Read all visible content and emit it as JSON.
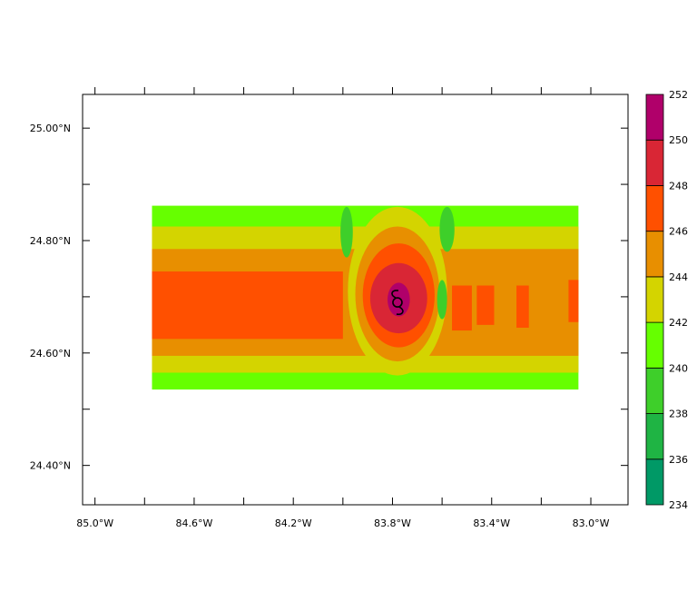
{
  "chart_data": {
    "type": "heatmap",
    "subtype": "filled-contour-map",
    "title": "",
    "xlabel": "",
    "ylabel": "",
    "xlim": [
      -85.05,
      -82.85
    ],
    "ylim": [
      24.33,
      25.06
    ],
    "x_ticks": [
      {
        "value": -85.0,
        "label": "85.0°W"
      },
      {
        "value": -84.6,
        "label": "84.6°W"
      },
      {
        "value": -84.2,
        "label": "84.2°W"
      },
      {
        "value": -83.8,
        "label": "83.8°W"
      },
      {
        "value": -83.4,
        "label": "83.4°W"
      },
      {
        "value": -83.0,
        "label": "83.0°W"
      }
    ],
    "x_minor_ticks": [
      -84.8,
      -84.4,
      -84.0,
      -83.6,
      -83.2
    ],
    "y_ticks": [
      {
        "value": 25.0,
        "label": "25.00°N"
      },
      {
        "value": 24.8,
        "label": "24.80°N"
      },
      {
        "value": 24.6,
        "label": "24.60°N"
      },
      {
        "value": 24.4,
        "label": "24.40°N"
      }
    ],
    "y_minor_ticks": [
      24.9,
      24.7,
      24.5
    ],
    "data_extent": {
      "lon": [
        -84.77,
        -83.05
      ],
      "lat": [
        24.53,
        24.865
      ]
    },
    "storm_center": {
      "lon": -83.78,
      "lat": 24.69,
      "symbol": "hurricane-symbol"
    },
    "colorbar": {
      "levels": [
        234,
        236,
        238,
        240,
        242,
        244,
        246,
        248,
        250,
        252
      ],
      "labels": [
        "234",
        "236",
        "238",
        "240",
        "242",
        "244",
        "246",
        "248",
        "250",
        "252"
      ],
      "colors": [
        "#009966",
        "#1fb444",
        "#3ecf2a",
        "#66ff00",
        "#d4d400",
        "#e88f00",
        "#ff5000",
        "#d92635",
        "#b0006a"
      ]
    },
    "fill_regions": [
      {
        "level_index": 3,
        "lon": [
          -84.77,
          -83.05
        ],
        "lat": [
          24.535,
          24.862
        ],
        "shape": "rect"
      },
      {
        "level_index": 4,
        "lon": [
          -84.77,
          -83.05
        ],
        "lat": [
          24.565,
          24.825
        ],
        "shape": "rect"
      },
      {
        "level_index": 5,
        "lon": [
          -84.77,
          -83.05
        ],
        "lat": [
          24.595,
          24.785
        ],
        "shape": "rect"
      },
      {
        "level_index": 6,
        "lon": [
          -84.77,
          -84.0
        ],
        "lat": [
          24.625,
          24.745
        ],
        "shape": "rect"
      },
      {
        "level_index": 2,
        "lon": [
          -84.01,
          -83.96
        ],
        "lat": [
          24.77,
          24.86
        ],
        "shape": "ellipse"
      },
      {
        "level_index": 2,
        "lon": [
          -83.61,
          -83.55
        ],
        "lat": [
          24.78,
          24.86
        ],
        "shape": "ellipse"
      },
      {
        "level_index": 4,
        "lon": [
          -83.98,
          -83.58
        ],
        "lat": [
          24.56,
          24.86
        ],
        "shape": "ellipse"
      },
      {
        "level_index": 5,
        "lon": [
          -83.95,
          -83.61
        ],
        "lat": [
          24.585,
          24.825
        ],
        "shape": "ellipse"
      },
      {
        "level_index": 6,
        "lon": [
          -83.92,
          -83.63
        ],
        "lat": [
          24.61,
          24.795
        ],
        "shape": "ellipse"
      },
      {
        "level_index": 7,
        "lon": [
          -83.89,
          -83.66
        ],
        "lat": [
          24.635,
          24.76
        ],
        "shape": "ellipse"
      },
      {
        "level_index": 8,
        "lon": [
          -83.82,
          -83.73
        ],
        "lat": [
          24.665,
          24.725
        ],
        "shape": "ellipse"
      },
      {
        "level_index": 2,
        "lon": [
          -83.62,
          -83.58
        ],
        "lat": [
          24.66,
          24.73
        ],
        "shape": "ellipse"
      },
      {
        "level_index": 6,
        "lon": [
          -83.56,
          -83.48
        ],
        "lat": [
          24.64,
          24.72
        ],
        "shape": "rect"
      },
      {
        "level_index": 6,
        "lon": [
          -83.46,
          -83.39
        ],
        "lat": [
          24.65,
          24.72
        ],
        "shape": "rect"
      },
      {
        "level_index": 6,
        "lon": [
          -83.3,
          -83.25
        ],
        "lat": [
          24.645,
          24.72
        ],
        "shape": "rect"
      },
      {
        "level_index": 6,
        "lon": [
          -83.09,
          -83.05
        ],
        "lat": [
          24.655,
          24.73
        ],
        "shape": "rect"
      }
    ]
  }
}
